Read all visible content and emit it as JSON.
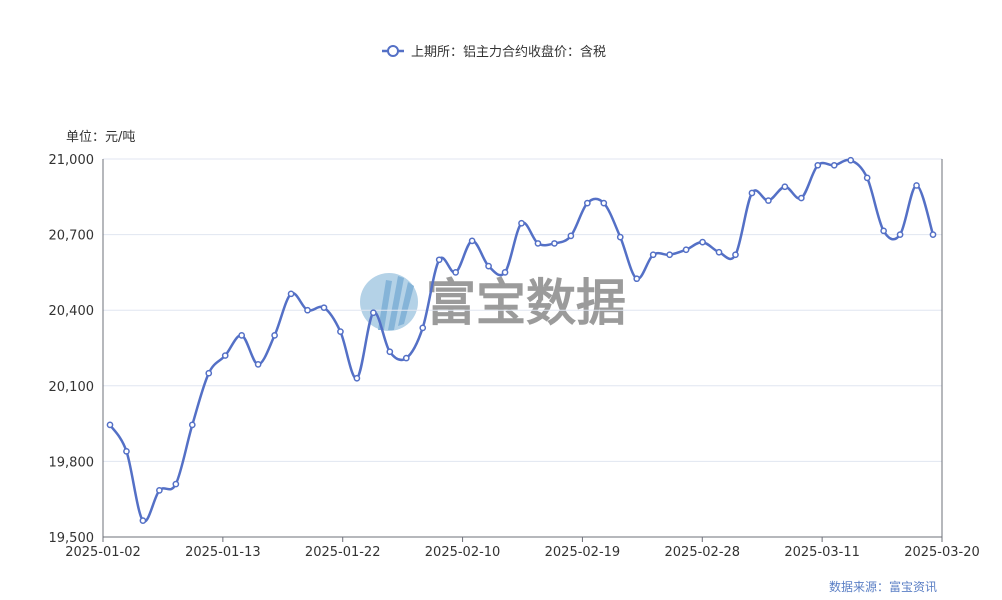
{
  "chart_data": {
    "type": "line",
    "legend": {
      "entries": [
        "上期所：铝主力合约收盘价：含税"
      ],
      "placement": "top-center"
    },
    "unit_label": "单位：元/吨",
    "source": "数据来源：富宝资讯",
    "watermark": "富宝数据",
    "ylim": [
      19500,
      21000
    ],
    "y_ticks": [
      "19,500",
      "19,800",
      "20,100",
      "20,400",
      "20,700",
      "21,000"
    ],
    "x_ticks": [
      "2025-01-02",
      "2025-01-13",
      "2025-01-22",
      "2025-02-10",
      "2025-02-19",
      "2025-02-28",
      "2025-03-11",
      "2025-03-20"
    ],
    "grid": true,
    "series_color": "#5470c6",
    "series": [
      {
        "name": "上期所：铝主力合约收盘价：含税",
        "values": [
          19945,
          19840,
          19565,
          19685,
          19710,
          19945,
          20150,
          20220,
          20300,
          20185,
          20300,
          20465,
          20400,
          20410,
          20315,
          20130,
          20390,
          20235,
          20210,
          20330,
          20600,
          20550,
          20675,
          20575,
          20550,
          20745,
          20665,
          20665,
          20695,
          20825,
          20825,
          20690,
          20525,
          20620,
          20620,
          20640,
          20670,
          20630,
          20620,
          20865,
          20835,
          20890,
          20845,
          20975,
          20975,
          20995,
          20925,
          20715,
          20700,
          20895,
          20700
        ]
      }
    ]
  }
}
